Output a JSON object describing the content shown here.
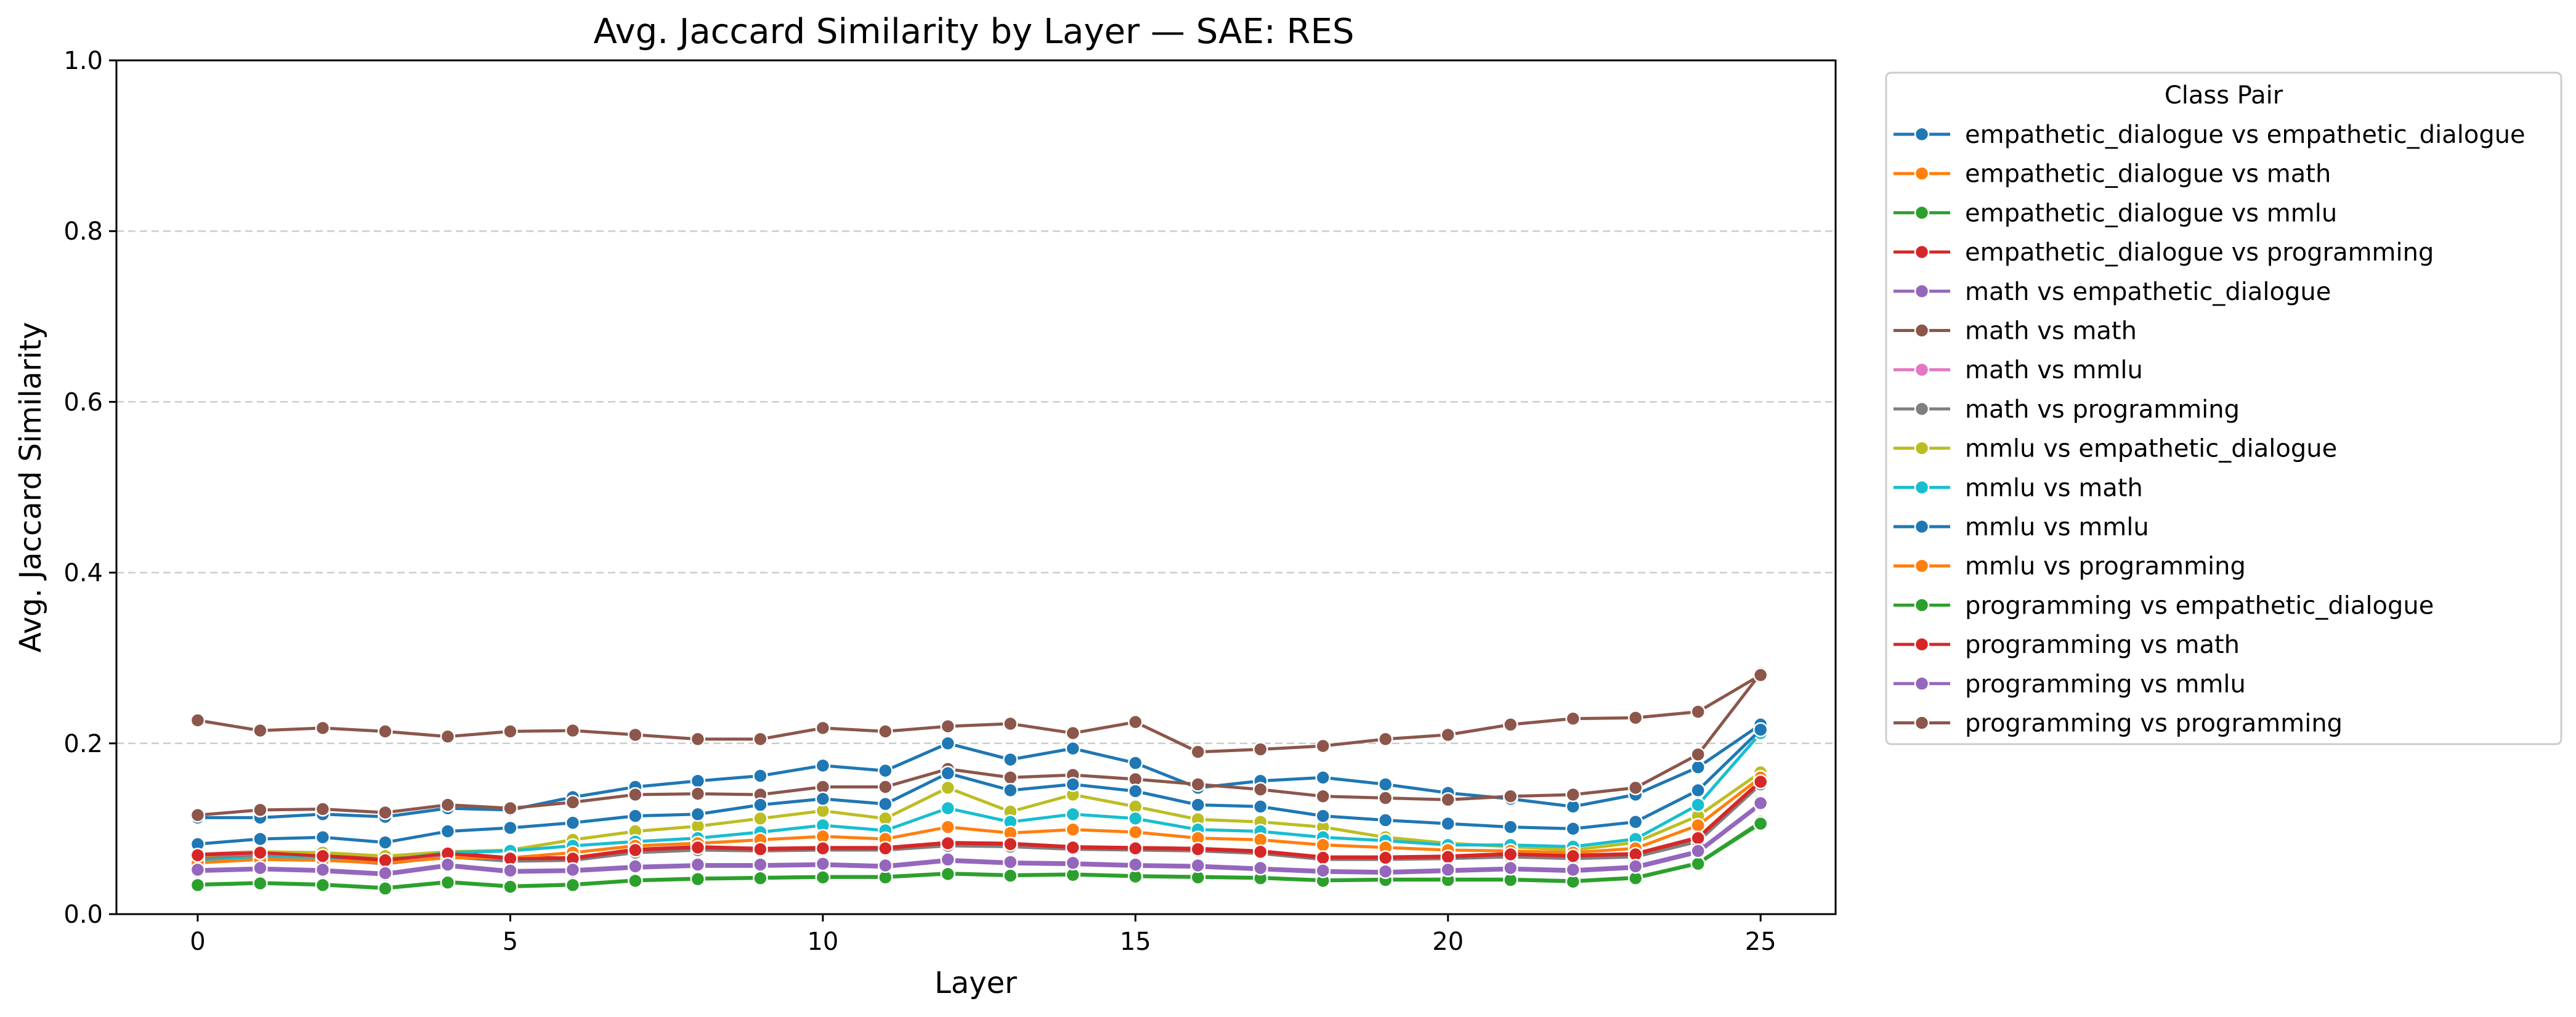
{
  "chart_data": {
    "type": "line",
    "title": "Avg. Jaccard Similarity by Layer — SAE: RES",
    "xlabel": "Layer",
    "ylabel": "Avg. Jaccard Similarity",
    "xlim": [
      -1.3,
      26.2
    ],
    "ylim": [
      0,
      1
    ],
    "xticks": [
      0,
      5,
      10,
      15,
      20,
      25
    ],
    "yticks": [
      0.0,
      0.2,
      0.4,
      0.6,
      0.8,
      1.0
    ],
    "ytick_labels": [
      "0.0",
      "0.2",
      "0.4",
      "0.6",
      "0.8",
      "1.0"
    ],
    "grid": "horizontal dashed",
    "legend_title": "Class Pair",
    "legend_position": "outside right",
    "x": [
      0,
      1,
      2,
      3,
      4,
      5,
      6,
      7,
      8,
      9,
      10,
      11,
      12,
      13,
      14,
      15,
      16,
      17,
      18,
      19,
      20,
      21,
      22,
      23,
      24,
      25
    ],
    "series": [
      {
        "name": "empathetic_dialogue vs empathetic_dialogue",
        "color": "#1f77b4",
        "values": [
          0.113,
          0.113,
          0.117,
          0.114,
          0.124,
          0.122,
          0.137,
          0.149,
          0.156,
          0.162,
          0.174,
          0.168,
          0.2,
          0.181,
          0.194,
          0.177,
          0.148,
          0.156,
          0.16,
          0.152,
          0.142,
          0.135,
          0.126,
          0.14,
          0.172,
          0.222
        ]
      },
      {
        "name": "empathetic_dialogue vs math",
        "color": "#ff7f0e",
        "values": [
          0.068,
          0.07,
          0.066,
          0.061,
          0.07,
          0.065,
          0.065,
          0.075,
          0.078,
          0.076,
          0.077,
          0.077,
          0.083,
          0.082,
          0.078,
          0.078,
          0.077,
          0.073,
          0.066,
          0.066,
          0.068,
          0.07,
          0.068,
          0.07,
          0.088,
          0.155
        ]
      },
      {
        "name": "empathetic_dialogue vs mmlu",
        "color": "#2ca02c",
        "values": [
          0.035,
          0.037,
          0.035,
          0.031,
          0.038,
          0.033,
          0.035,
          0.04,
          0.042,
          0.043,
          0.044,
          0.044,
          0.048,
          0.046,
          0.047,
          0.045,
          0.044,
          0.043,
          0.04,
          0.041,
          0.041,
          0.041,
          0.039,
          0.043,
          0.06,
          0.108
        ]
      },
      {
        "name": "empathetic_dialogue vs programming",
        "color": "#d62728",
        "values": [
          0.07,
          0.073,
          0.069,
          0.064,
          0.072,
          0.066,
          0.066,
          0.076,
          0.079,
          0.077,
          0.078,
          0.078,
          0.084,
          0.083,
          0.079,
          0.078,
          0.077,
          0.074,
          0.067,
          0.067,
          0.068,
          0.071,
          0.069,
          0.071,
          0.09,
          0.156
        ]
      },
      {
        "name": "math vs empathetic_dialogue",
        "color": "#9467bd",
        "values": [
          0.05,
          0.052,
          0.05,
          0.046,
          0.056,
          0.049,
          0.05,
          0.054,
          0.056,
          0.056,
          0.057,
          0.055,
          0.062,
          0.059,
          0.058,
          0.056,
          0.055,
          0.052,
          0.049,
          0.048,
          0.05,
          0.052,
          0.05,
          0.054,
          0.072,
          0.128
        ]
      },
      {
        "name": "math vs math",
        "color": "#8c564b",
        "values": [
          0.116,
          0.122,
          0.123,
          0.119,
          0.128,
          0.124,
          0.131,
          0.14,
          0.141,
          0.14,
          0.149,
          0.149,
          0.17,
          0.16,
          0.163,
          0.158,
          0.152,
          0.146,
          0.138,
          0.136,
          0.134,
          0.138,
          0.14,
          0.148,
          0.187,
          0.282
        ]
      },
      {
        "name": "math vs mmlu",
        "color": "#e377c2",
        "values": [
          0.066,
          0.069,
          0.065,
          0.06,
          0.068,
          0.063,
          0.064,
          0.073,
          0.076,
          0.075,
          0.076,
          0.076,
          0.081,
          0.08,
          0.077,
          0.076,
          0.075,
          0.072,
          0.065,
          0.065,
          0.066,
          0.068,
          0.066,
          0.068,
          0.086,
          0.153
        ]
      },
      {
        "name": "math vs programming",
        "color": "#7f7f7f",
        "values": [
          0.065,
          0.068,
          0.064,
          0.059,
          0.067,
          0.062,
          0.063,
          0.072,
          0.075,
          0.074,
          0.075,
          0.075,
          0.08,
          0.079,
          0.076,
          0.075,
          0.074,
          0.071,
          0.064,
          0.064,
          0.065,
          0.067,
          0.065,
          0.067,
          0.085,
          0.152
        ]
      },
      {
        "name": "mmlu vs empathetic_dialogue",
        "color": "#bcbd22",
        "values": [
          0.068,
          0.073,
          0.072,
          0.068,
          0.073,
          0.075,
          0.087,
          0.097,
          0.103,
          0.112,
          0.121,
          0.112,
          0.148,
          0.12,
          0.14,
          0.126,
          0.111,
          0.108,
          0.102,
          0.09,
          0.083,
          0.079,
          0.075,
          0.084,
          0.115,
          0.166
        ]
      },
      {
        "name": "mmlu vs math",
        "color": "#17becf",
        "values": [
          0.062,
          0.066,
          0.066,
          0.063,
          0.072,
          0.074,
          0.08,
          0.085,
          0.089,
          0.096,
          0.104,
          0.098,
          0.124,
          0.108,
          0.117,
          0.112,
          0.099,
          0.097,
          0.09,
          0.086,
          0.081,
          0.081,
          0.079,
          0.088,
          0.128,
          0.212
        ]
      },
      {
        "name": "mmlu vs mmlu",
        "color": "#1f77b4",
        "values": [
          0.082,
          0.088,
          0.09,
          0.084,
          0.097,
          0.101,
          0.107,
          0.115,
          0.117,
          0.128,
          0.135,
          0.129,
          0.165,
          0.145,
          0.152,
          0.144,
          0.128,
          0.126,
          0.115,
          0.11,
          0.106,
          0.102,
          0.1,
          0.108,
          0.145,
          0.216
        ]
      },
      {
        "name": "mmlu vs programming",
        "color": "#ff7f0e",
        "values": [
          0.06,
          0.064,
          0.063,
          0.06,
          0.066,
          0.066,
          0.072,
          0.08,
          0.083,
          0.087,
          0.091,
          0.088,
          0.102,
          0.095,
          0.099,
          0.096,
          0.089,
          0.087,
          0.081,
          0.078,
          0.075,
          0.074,
          0.072,
          0.077,
          0.104,
          0.16
        ]
      },
      {
        "name": "programming vs empathetic_dialogue",
        "color": "#2ca02c",
        "values": [
          0.034,
          0.036,
          0.034,
          0.03,
          0.037,
          0.032,
          0.034,
          0.039,
          0.041,
          0.042,
          0.043,
          0.043,
          0.047,
          0.045,
          0.046,
          0.044,
          0.043,
          0.042,
          0.039,
          0.04,
          0.04,
          0.04,
          0.038,
          0.042,
          0.059,
          0.106
        ]
      },
      {
        "name": "programming vs math",
        "color": "#d62728",
        "values": [
          0.069,
          0.072,
          0.068,
          0.063,
          0.071,
          0.065,
          0.065,
          0.075,
          0.078,
          0.076,
          0.077,
          0.077,
          0.083,
          0.082,
          0.078,
          0.077,
          0.076,
          0.073,
          0.066,
          0.066,
          0.067,
          0.07,
          0.068,
          0.07,
          0.089,
          0.155
        ]
      },
      {
        "name": "programming vs mmlu",
        "color": "#9467bd",
        "values": [
          0.052,
          0.054,
          0.052,
          0.048,
          0.058,
          0.051,
          0.052,
          0.056,
          0.058,
          0.058,
          0.059,
          0.057,
          0.064,
          0.061,
          0.06,
          0.058,
          0.057,
          0.054,
          0.051,
          0.05,
          0.052,
          0.054,
          0.052,
          0.056,
          0.074,
          0.13
        ]
      },
      {
        "name": "programming vs programming",
        "color": "#8c564b",
        "values": [
          0.227,
          0.215,
          0.218,
          0.214,
          0.208,
          0.214,
          0.215,
          0.21,
          0.205,
          0.205,
          0.218,
          0.214,
          0.22,
          0.223,
          0.212,
          0.225,
          0.19,
          0.193,
          0.197,
          0.205,
          0.21,
          0.222,
          0.229,
          0.23,
          0.237,
          0.28
        ]
      }
    ]
  }
}
